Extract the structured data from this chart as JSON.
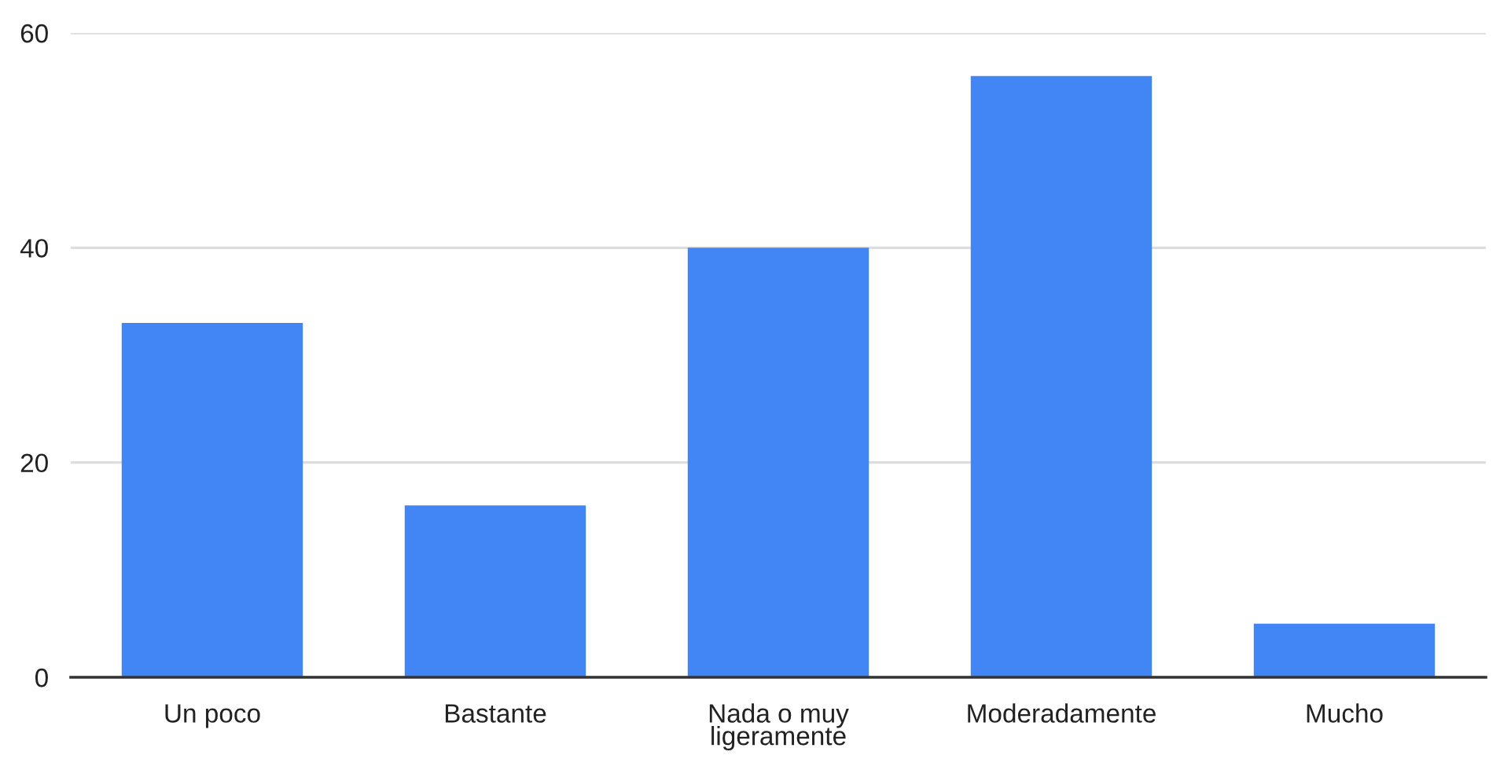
{
  "chart_data": {
    "type": "bar",
    "categories": [
      "Un poco",
      "Bastante",
      "Nada o muy\nligeramente",
      "Moderadamente",
      "Mucho"
    ],
    "values": [
      33,
      16,
      40,
      56,
      5
    ],
    "color": "#4285f4",
    "ylim": [
      0,
      60
    ],
    "yticks": [
      0,
      20,
      40,
      60
    ],
    "grid": "y"
  }
}
